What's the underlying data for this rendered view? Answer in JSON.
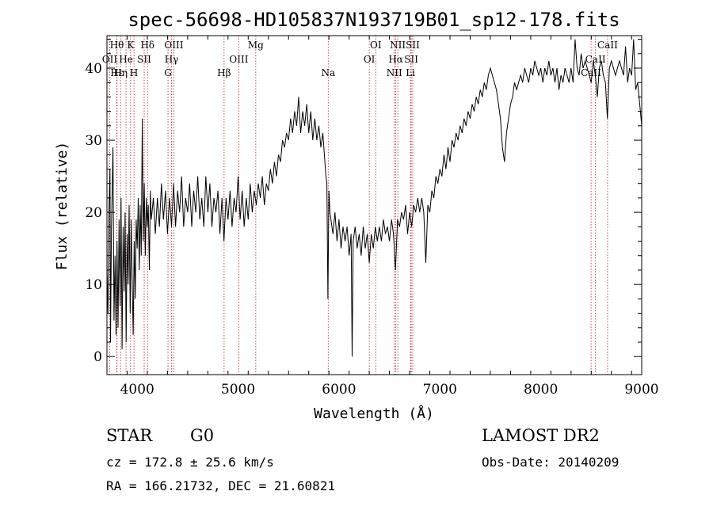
{
  "chart_data": {
    "type": "line",
    "title": "spec-56698-HD105837N193719B01_sp12-178.fits",
    "xlabel": "Wavelength (Å)",
    "ylabel": "Flux (relative)",
    "xlim": [
      3700,
      9000
    ],
    "ylim": [
      -2.5,
      44.5
    ],
    "x_ticks": [
      4000,
      5000,
      6000,
      7000,
      8000,
      9000
    ],
    "y_ticks": [
      0,
      10,
      20,
      30,
      40
    ],
    "series": [
      {
        "values": [
          [
            3700,
            12
          ],
          [
            3710,
            6
          ],
          [
            3720,
            20
          ],
          [
            3730,
            26
          ],
          [
            3735,
            2
          ],
          [
            3745,
            18
          ],
          [
            3760,
            29
          ],
          [
            3770,
            5
          ],
          [
            3780,
            14
          ],
          [
            3790,
            3
          ],
          [
            3800,
            16
          ],
          [
            3810,
            4
          ],
          [
            3820,
            19
          ],
          [
            3830,
            7
          ],
          [
            3840,
            22
          ],
          [
            3850,
            1
          ],
          [
            3860,
            18
          ],
          [
            3870,
            9
          ],
          [
            3880,
            20
          ],
          [
            3890,
            2
          ],
          [
            3900,
            17
          ],
          [
            3910,
            10
          ],
          [
            3920,
            21
          ],
          [
            3930,
            6
          ],
          [
            3940,
            19
          ],
          [
            3950,
            11
          ],
          [
            3960,
            3
          ],
          [
            3970,
            16
          ],
          [
            3980,
            8
          ],
          [
            3990,
            19
          ],
          [
            4000,
            15
          ],
          [
            4010,
            22
          ],
          [
            4020,
            12
          ],
          [
            4030,
            21
          ],
          [
            4040,
            14
          ],
          [
            4050,
            33
          ],
          [
            4060,
            16
          ],
          [
            4070,
            24
          ],
          [
            4080,
            14
          ],
          [
            4090,
            22
          ],
          [
            4100,
            18
          ],
          [
            4110,
            21
          ],
          [
            4120,
            12
          ],
          [
            4130,
            23
          ],
          [
            4140,
            19
          ],
          [
            4160,
            22
          ],
          [
            4180,
            17
          ],
          [
            4200,
            22
          ],
          [
            4220,
            18
          ],
          [
            4240,
            24
          ],
          [
            4260,
            19
          ],
          [
            4280,
            23
          ],
          [
            4300,
            17
          ],
          [
            4320,
            22
          ],
          [
            4340,
            18
          ],
          [
            4360,
            24
          ],
          [
            4380,
            18
          ],
          [
            4400,
            23
          ],
          [
            4420,
            20
          ],
          [
            4440,
            25
          ],
          [
            4460,
            18
          ],
          [
            4480,
            22
          ],
          [
            4500,
            20
          ],
          [
            4520,
            24
          ],
          [
            4540,
            18
          ],
          [
            4560,
            23
          ],
          [
            4580,
            20
          ],
          [
            4600,
            25
          ],
          [
            4620,
            19
          ],
          [
            4640,
            22
          ],
          [
            4660,
            18
          ],
          [
            4680,
            25
          ],
          [
            4700,
            20
          ],
          [
            4720,
            24
          ],
          [
            4740,
            18
          ],
          [
            4760,
            22
          ],
          [
            4780,
            20
          ],
          [
            4800,
            23
          ],
          [
            4820,
            17
          ],
          [
            4840,
            22
          ],
          [
            4860,
            16
          ],
          [
            4880,
            22
          ],
          [
            4900,
            19
          ],
          [
            4920,
            23
          ],
          [
            4940,
            18
          ],
          [
            4960,
            22
          ],
          [
            4980,
            20
          ],
          [
            5000,
            25
          ],
          [
            5020,
            19
          ],
          [
            5040,
            23
          ],
          [
            5060,
            18
          ],
          [
            5080,
            22
          ],
          [
            5100,
            19
          ],
          [
            5120,
            24
          ],
          [
            5140,
            20
          ],
          [
            5160,
            23
          ],
          [
            5180,
            21
          ],
          [
            5200,
            24
          ],
          [
            5220,
            22
          ],
          [
            5240,
            25
          ],
          [
            5260,
            21
          ],
          [
            5280,
            24
          ],
          [
            5300,
            23
          ],
          [
            5320,
            26
          ],
          [
            5340,
            24
          ],
          [
            5360,
            27
          ],
          [
            5380,
            25
          ],
          [
            5400,
            28
          ],
          [
            5420,
            27
          ],
          [
            5440,
            30
          ],
          [
            5460,
            29
          ],
          [
            5480,
            31
          ],
          [
            5500,
            30
          ],
          [
            5520,
            33
          ],
          [
            5540,
            31
          ],
          [
            5560,
            34
          ],
          [
            5580,
            32
          ],
          [
            5600,
            36
          ],
          [
            5620,
            31
          ],
          [
            5640,
            34
          ],
          [
            5660,
            32
          ],
          [
            5680,
            35
          ],
          [
            5700,
            31
          ],
          [
            5720,
            34
          ],
          [
            5740,
            30
          ],
          [
            5760,
            33
          ],
          [
            5780,
            30
          ],
          [
            5800,
            32
          ],
          [
            5820,
            29
          ],
          [
            5840,
            31
          ],
          [
            5860,
            27
          ],
          [
            5870,
            25
          ],
          [
            5880,
            24
          ],
          [
            5890,
            8
          ],
          [
            5900,
            23
          ],
          [
            5910,
            20
          ],
          [
            5920,
            19
          ],
          [
            5940,
            17
          ],
          [
            5960,
            20
          ],
          [
            5980,
            16
          ],
          [
            6000,
            19
          ],
          [
            6020,
            15
          ],
          [
            6040,
            18
          ],
          [
            6060,
            16
          ],
          [
            6080,
            18
          ],
          [
            6100,
            14
          ],
          [
            6120,
            17
          ],
          [
            6130,
            0
          ],
          [
            6140,
            16
          ],
          [
            6160,
            18
          ],
          [
            6180,
            15
          ],
          [
            6200,
            17
          ],
          [
            6220,
            14
          ],
          [
            6240,
            18
          ],
          [
            6260,
            15
          ],
          [
            6280,
            17
          ],
          [
            6300,
            13
          ],
          [
            6320,
            17
          ],
          [
            6340,
            15
          ],
          [
            6360,
            18
          ],
          [
            6380,
            16
          ],
          [
            6400,
            18
          ],
          [
            6420,
            16
          ],
          [
            6440,
            19
          ],
          [
            6460,
            17
          ],
          [
            6480,
            18
          ],
          [
            6500,
            16
          ],
          [
            6520,
            19
          ],
          [
            6540,
            17
          ],
          [
            6560,
            12
          ],
          [
            6580,
            19
          ],
          [
            6600,
            18
          ],
          [
            6620,
            20
          ],
          [
            6640,
            19
          ],
          [
            6660,
            21
          ],
          [
            6680,
            17
          ],
          [
            6700,
            20
          ],
          [
            6720,
            18
          ],
          [
            6740,
            21
          ],
          [
            6760,
            20
          ],
          [
            6780,
            22
          ],
          [
            6800,
            20
          ],
          [
            6820,
            22
          ],
          [
            6840,
            20
          ],
          [
            6860,
            13
          ],
          [
            6880,
            21
          ],
          [
            6900,
            20
          ],
          [
            6920,
            23
          ],
          [
            6940,
            22
          ],
          [
            6960,
            25
          ],
          [
            6980,
            24
          ],
          [
            7000,
            26
          ],
          [
            7020,
            25
          ],
          [
            7040,
            28
          ],
          [
            7060,
            26
          ],
          [
            7080,
            29
          ],
          [
            7100,
            27
          ],
          [
            7120,
            30
          ],
          [
            7140,
            29
          ],
          [
            7160,
            31
          ],
          [
            7180,
            30
          ],
          [
            7200,
            32
          ],
          [
            7220,
            31
          ],
          [
            7240,
            33
          ],
          [
            7260,
            32
          ],
          [
            7280,
            34
          ],
          [
            7300,
            33
          ],
          [
            7320,
            35
          ],
          [
            7340,
            34
          ],
          [
            7360,
            36
          ],
          [
            7380,
            35
          ],
          [
            7400,
            37
          ],
          [
            7420,
            36
          ],
          [
            7440,
            38
          ],
          [
            7460,
            37
          ],
          [
            7480,
            39
          ],
          [
            7500,
            40
          ],
          [
            7520,
            39
          ],
          [
            7540,
            38
          ],
          [
            7560,
            37
          ],
          [
            7580,
            35
          ],
          [
            7600,
            33
          ],
          [
            7620,
            29
          ],
          [
            7640,
            27
          ],
          [
            7660,
            31
          ],
          [
            7680,
            33
          ],
          [
            7700,
            35
          ],
          [
            7720,
            36
          ],
          [
            7740,
            38
          ],
          [
            7760,
            37
          ],
          [
            7780,
            38
          ],
          [
            7800,
            39
          ],
          [
            7820,
            38
          ],
          [
            7840,
            40
          ],
          [
            7860,
            39
          ],
          [
            7880,
            38
          ],
          [
            7900,
            40
          ],
          [
            7920,
            39
          ],
          [
            7940,
            41
          ],
          [
            7960,
            40
          ],
          [
            7980,
            39
          ],
          [
            8000,
            40
          ],
          [
            8020,
            38
          ],
          [
            8040,
            40
          ],
          [
            8060,
            39
          ],
          [
            8080,
            41
          ],
          [
            8100,
            39
          ],
          [
            8120,
            40
          ],
          [
            8140,
            38
          ],
          [
            8160,
            40
          ],
          [
            8180,
            37
          ],
          [
            8200,
            39
          ],
          [
            8220,
            38
          ],
          [
            8240,
            40
          ],
          [
            8260,
            39
          ],
          [
            8280,
            38
          ],
          [
            8300,
            40
          ],
          [
            8320,
            38
          ],
          [
            8340,
            44
          ],
          [
            8360,
            40
          ],
          [
            8380,
            39
          ],
          [
            8400,
            42
          ],
          [
            8420,
            40
          ],
          [
            8440,
            41
          ],
          [
            8460,
            40
          ],
          [
            8480,
            39
          ],
          [
            8500,
            38
          ],
          [
            8520,
            41
          ],
          [
            8540,
            39
          ],
          [
            8560,
            36
          ],
          [
            8580,
            40
          ],
          [
            8600,
            41
          ],
          [
            8620,
            39
          ],
          [
            8640,
            38
          ],
          [
            8660,
            33
          ],
          [
            8680,
            40
          ],
          [
            8700,
            41
          ],
          [
            8720,
            40
          ],
          [
            8740,
            39
          ],
          [
            8760,
            40
          ],
          [
            8780,
            41
          ],
          [
            8800,
            40
          ],
          [
            8820,
            39
          ],
          [
            8840,
            43
          ],
          [
            8860,
            38
          ],
          [
            8880,
            40
          ],
          [
            8900,
            39
          ],
          [
            8920,
            44
          ],
          [
            8940,
            37
          ],
          [
            8960,
            38
          ],
          [
            8980,
            35
          ],
          [
            9000,
            32
          ],
          [
            9000,
            5
          ]
        ]
      }
    ],
    "spectral_lines": [
      {
        "label": "Hθ",
        "x": 3798,
        "row": 0
      },
      {
        "label": "OII",
        "x": 3727,
        "row": 1
      },
      {
        "label": "Hη",
        "x": 3835,
        "row": 2
      },
      {
        "label": "Hε",
        "x": 3800,
        "row": 2
      },
      {
        "label": "K",
        "x": 3934,
        "row": 0
      },
      {
        "label": "He",
        "x": 3889,
        "row": 1
      },
      {
        "label": "SII",
        "x": 4069,
        "row": 1
      },
      {
        "label": "H",
        "x": 3968,
        "row": 2
      },
      {
        "label": "Hδ",
        "x": 4102,
        "row": 0
      },
      {
        "label": "OIII",
        "x": 4363,
        "row": 0
      },
      {
        "label": "Hγ",
        "x": 4340,
        "row": 1
      },
      {
        "label": "G",
        "x": 4305,
        "row": 2
      },
      {
        "label": "Mg",
        "x": 5175,
        "row": 0
      },
      {
        "label": "OIII",
        "x": 5007,
        "row": 1
      },
      {
        "label": "Hβ",
        "x": 4861,
        "row": 2
      },
      {
        "label": "Na",
        "x": 5893,
        "row": 2
      },
      {
        "label": "OI",
        "x": 6364,
        "row": 0
      },
      {
        "label": "OI",
        "x": 6300,
        "row": 1
      },
      {
        "label": "NII",
        "x": 6583,
        "row": 0
      },
      {
        "label": "SII",
        "x": 6731,
        "row": 0
      },
      {
        "label": "Hα",
        "x": 6563,
        "row": 1
      },
      {
        "label": "SII",
        "x": 6716,
        "row": 1
      },
      {
        "label": "NII",
        "x": 6548,
        "row": 2
      },
      {
        "label": "Li",
        "x": 6708,
        "row": 2
      },
      {
        "label": "CaII",
        "x": 8662,
        "row": 0
      },
      {
        "label": "CaII",
        "x": 8542,
        "row": 1
      },
      {
        "label": "CaII",
        "x": 8498,
        "row": 2
      }
    ],
    "line_color": "#000000",
    "marker_color": "#b22222",
    "grid": false
  },
  "info": {
    "object_class": "STAR",
    "subclass": "G0",
    "survey": "LAMOST DR2",
    "redshift": "cz = 172.8 ± 25.6 km/s",
    "obs_date": "Obs-Date: 20140209",
    "coordinates": "RA = 166.21732, DEC =  21.60821"
  }
}
